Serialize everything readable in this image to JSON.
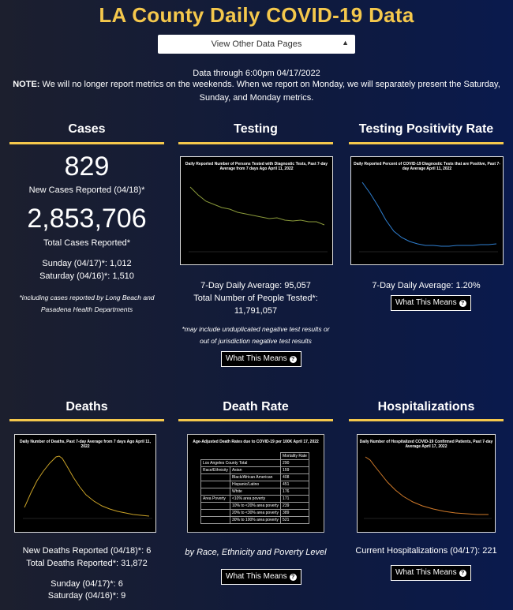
{
  "title": "LA County Daily COVID-19 Data",
  "select": {
    "value": "View Other Data Pages"
  },
  "intro": {
    "data_through": "Data through 6:00pm 04/17/2022",
    "note_label": "NOTE:",
    "note_text": "We will no longer report metrics on the weekends. When we report on Monday, we will separately present the Saturday, Sunday, and Monday metrics."
  },
  "cases": {
    "heading": "Cases",
    "new_value": "829",
    "new_label": "New Cases Reported (04/18)*",
    "total_value": "2,853,706",
    "total_label": "Total Cases Reported*",
    "sunday": "Sunday (04/17)*: 1,012",
    "saturday": "Saturday (04/16)*: 1,510",
    "footnote": "*including cases reported by Long Beach and Pasadena Health Departments"
  },
  "testing": {
    "heading": "Testing",
    "chart_title": "Daily Reported Number of Persons Tested with Diagnostic Tests, Past 7-day Average from 7 days Ago April 11, 2022",
    "avg": "7-Day Daily Average: 95,057",
    "total": "Total Number of People Tested*: 11,791,057",
    "footnote": "*may include unduplicated negative test results or out of jurisdiction negative test results",
    "button": "What This Means"
  },
  "positivity": {
    "heading": "Testing Positivity Rate",
    "chart_title": "Daily Reported Percent of COVID-19 Diagnostic Tests that are Positive, Past 7-day Average April 11, 2022",
    "avg": "7-Day Daily Average: 1.20%",
    "button": "What This Means"
  },
  "deaths": {
    "heading": "Deaths",
    "chart_title": "Daily Number of Deaths, Past 7-day Average from 7 days Ago April 11, 2022",
    "new": "New Deaths Reported (04/18)*: 6",
    "total": "Total Deaths Reported*: 31,872",
    "sunday": "Sunday (04/17)*: 6",
    "saturday": "Saturday (04/16)*: 9"
  },
  "death_rate": {
    "heading": "Death Rate",
    "chart_title": "Age-Adjusted Death Rates due to COVID-19 per 100K April 17, 2022",
    "table_header": "Mortality Rate",
    "county_label": "Los Angeles County Total",
    "county_value": "290",
    "rows": [
      {
        "group": "Race/Ethnicity",
        "label": "Asian",
        "value": "159"
      },
      {
        "group": "",
        "label": "Black/African American",
        "value": "408"
      },
      {
        "group": "",
        "label": "Hispanic/Latino",
        "value": "451"
      },
      {
        "group": "",
        "label": "White",
        "value": "176"
      },
      {
        "group": "Area Poverty",
        "label": "<10% area poverty",
        "value": "171"
      },
      {
        "group": "",
        "label": "10% to <20% area poverty",
        "value": "239"
      },
      {
        "group": "",
        "label": "20% to <30% area poverty",
        "value": "389"
      },
      {
        "group": "",
        "label": "30% to 100% area poverty",
        "value": "521"
      }
    ],
    "caption": "by Race, Ethnicity and Poverty Level",
    "button": "What This Means"
  },
  "hospitalizations": {
    "heading": "Hospitalizations",
    "chart_title": "Daily Number of Hospitalized COVID-19 Confirmed Patients, Past 7-day Average April 17, 2022",
    "current": "Current Hospitalizations (04/17): 221",
    "button": "What This Means"
  },
  "colors": {
    "accent": "#f5c84c",
    "testing_line": "#8a9a3a",
    "positivity_line": "#2f7fd0",
    "deaths_line": "#c9a227",
    "hosp_line": "#d07a2a"
  }
}
